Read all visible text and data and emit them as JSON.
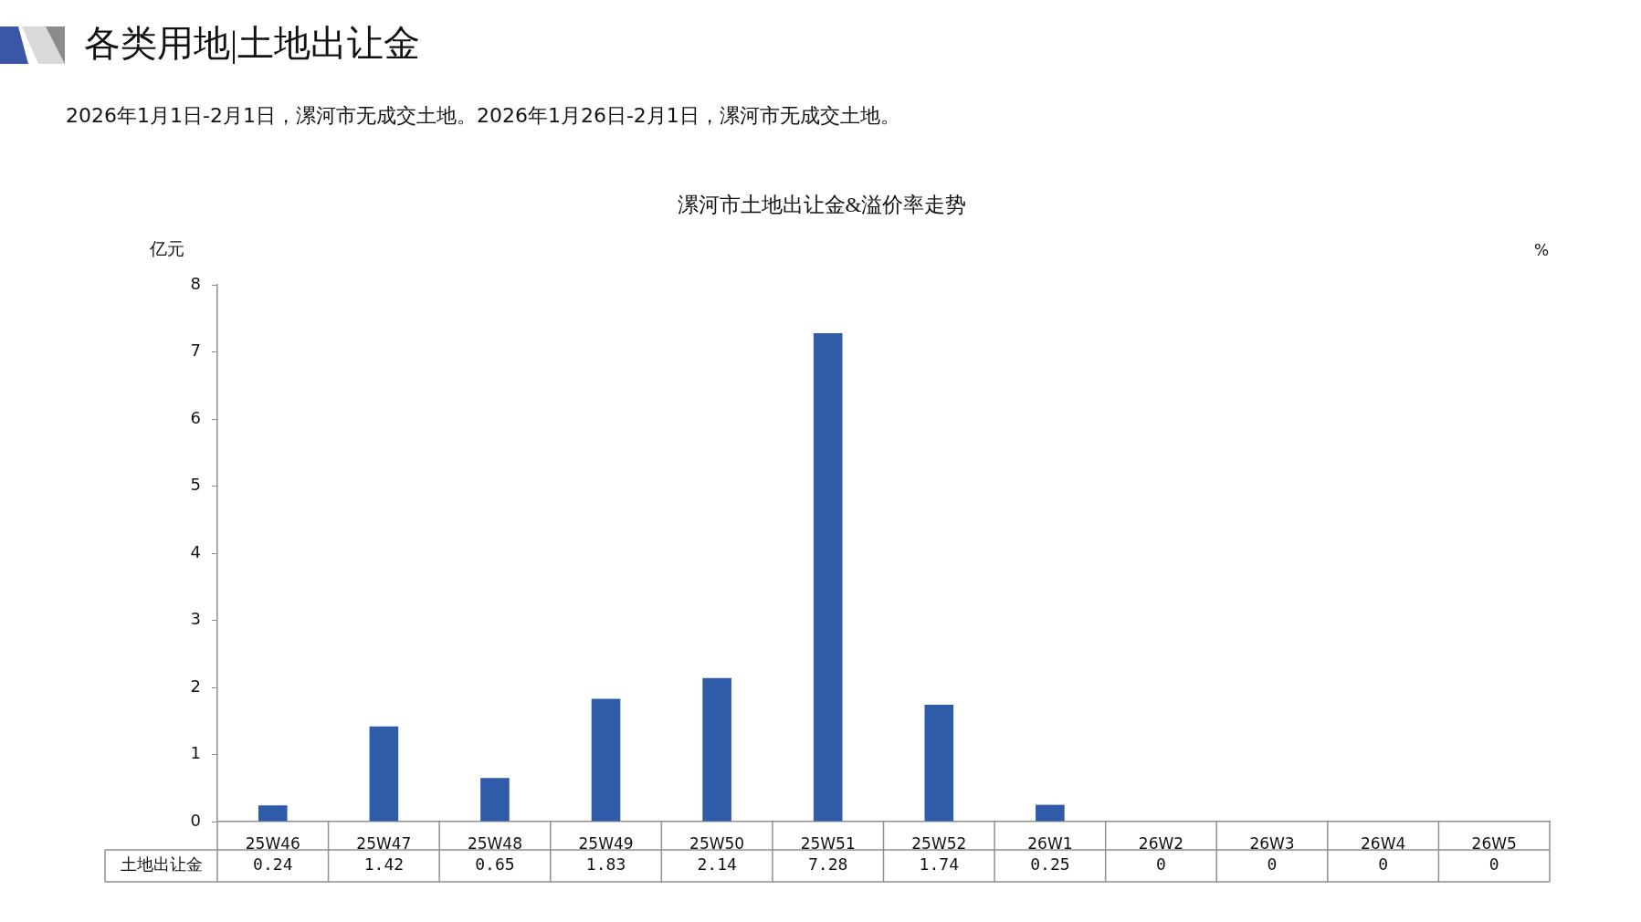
{
  "chart_data": {
    "type": "bar",
    "title": "漯河市土地出让金&溢价率走势",
    "annotations": [
      "各类用地|土地出让金",
      "2026年1月1日-2月1日，漯河市无成交土地。2026年1月26日-2月1日，漯河市无成交土地。"
    ],
    "ylabel": "亿元",
    "y2label": "%",
    "categories": [
      "25W46",
      "25W47",
      "25W48",
      "25W49",
      "25W50",
      "25W51",
      "25W52",
      "26W1",
      "26W2",
      "26W3",
      "26W4",
      "26W5"
    ],
    "series": [
      {
        "name": "土地出让金",
        "color": "#2f5ca9",
        "values": [
          0.24,
          1.42,
          0.65,
          1.83,
          2.14,
          7.28,
          1.74,
          0.25,
          0,
          0,
          0,
          0
        ]
      }
    ],
    "ylim": [
      0,
      8
    ],
    "yticks": [
      0,
      1,
      2,
      3,
      4,
      5,
      6,
      7,
      8
    ],
    "data_labels": true
  }
}
